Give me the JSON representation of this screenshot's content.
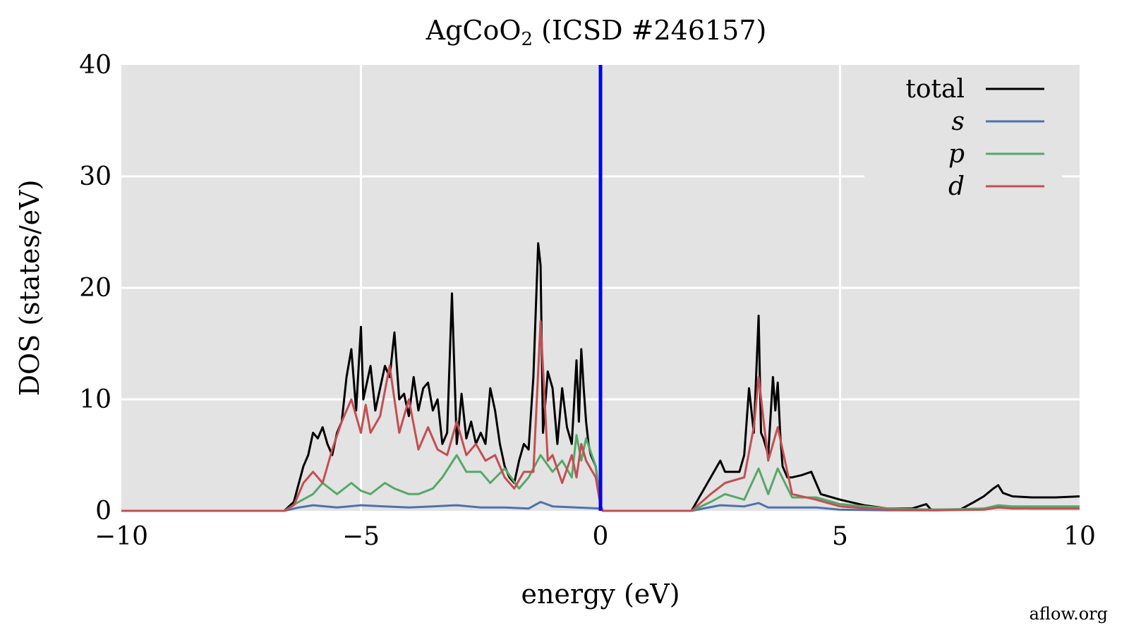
{
  "credit": "aflow.org",
  "chart_data": {
    "type": "line",
    "title_main": "AgCoO",
    "title_sub": "2",
    "title_rest": " (ICSD #246157)",
    "xlabel": "energy (eV)",
    "ylabel": "DOS (states/eV)",
    "xlim": [
      -10,
      10
    ],
    "ylim": [
      0,
      40
    ],
    "xticks": [
      -10,
      -5,
      0,
      5,
      10
    ],
    "xtick_labels": [
      "−10",
      "−5",
      "0",
      "5",
      "10"
    ],
    "yticks": [
      0,
      10,
      20,
      30,
      40
    ],
    "ytick_labels": [
      "0",
      "10",
      "20",
      "30",
      "40"
    ],
    "grid": true,
    "legend_position": "top-right",
    "fermi_level": 0,
    "fermi_color": "#0000ff",
    "background_color": "#e3e3e3",
    "series": [
      {
        "name": "total",
        "color": "#000000",
        "x": [
          -10,
          -6.6,
          -6.4,
          -6.2,
          -6.1,
          -6.0,
          -5.9,
          -5.8,
          -5.7,
          -5.6,
          -5.5,
          -5.4,
          -5.3,
          -5.2,
          -5.1,
          -5.0,
          -4.95,
          -4.9,
          -4.8,
          -4.7,
          -4.6,
          -4.5,
          -4.4,
          -4.3,
          -4.2,
          -4.1,
          -4.0,
          -3.9,
          -3.8,
          -3.7,
          -3.6,
          -3.5,
          -3.4,
          -3.3,
          -3.2,
          -3.1,
          -3.0,
          -2.95,
          -2.9,
          -2.8,
          -2.7,
          -2.6,
          -2.5,
          -2.4,
          -2.3,
          -2.2,
          -2.1,
          -2.0,
          -1.9,
          -1.8,
          -1.7,
          -1.6,
          -1.5,
          -1.4,
          -1.3,
          -1.25,
          -1.2,
          -1.1,
          -1.0,
          -0.9,
          -0.8,
          -0.7,
          -0.6,
          -0.5,
          -0.45,
          -0.4,
          -0.35,
          -0.3,
          -0.25,
          -0.2,
          -0.1,
          0.0,
          0.05,
          1.9,
          2.1,
          2.3,
          2.5,
          2.6,
          2.7,
          2.9,
          3.0,
          3.1,
          3.2,
          3.3,
          3.35,
          3.4,
          3.5,
          3.6,
          3.65,
          3.7,
          3.75,
          3.8,
          3.9,
          4.0,
          4.2,
          4.4,
          4.5,
          4.6,
          5.0,
          5.5,
          6.0,
          6.5,
          6.8,
          6.9,
          7.0,
          7.5,
          7.8,
          8.0,
          8.2,
          8.3,
          8.4,
          8.6,
          9.0,
          9.5,
          10.0
        ],
        "values": [
          0,
          0,
          0.8,
          4,
          5,
          7,
          6.5,
          7.5,
          6,
          5,
          7,
          8,
          12,
          14.5,
          9,
          16.5,
          10,
          11,
          13,
          9,
          11,
          13,
          12,
          16,
          10,
          10.5,
          8.5,
          12,
          9,
          11,
          11.5,
          9,
          10,
          6,
          7,
          19.5,
          6,
          8,
          10.5,
          6.5,
          8,
          6,
          7,
          6,
          11,
          9,
          6,
          4,
          3,
          2.5,
          4.5,
          6,
          5.5,
          12,
          24,
          22,
          7,
          12.5,
          11,
          6,
          11,
          7.5,
          6,
          13.5,
          8,
          14.5,
          11,
          8,
          6,
          5,
          4,
          0.5,
          0,
          0,
          1.5,
          3,
          4.5,
          3.5,
          3.5,
          3.5,
          5,
          11,
          7,
          17.5,
          7,
          6.5,
          5,
          12,
          9,
          11.5,
          7,
          4,
          3,
          3,
          3.2,
          3.5,
          2.5,
          1.5,
          1,
          0.5,
          0.2,
          0.2,
          0.6,
          0.1,
          0.1,
          0.1,
          0.8,
          1.3,
          2.0,
          2.3,
          1.6,
          1.3,
          1.2,
          1.2,
          1.3
        ]
      },
      {
        "name": "s",
        "color": "#4c72b0",
        "x": [
          -10,
          -6.6,
          -6.3,
          -6.0,
          -5.5,
          -5.0,
          -4.5,
          -4.0,
          -3.5,
          -3.0,
          -2.5,
          -2.0,
          -1.5,
          -1.25,
          -1.0,
          -0.5,
          0.0,
          0.05,
          1.9,
          2.5,
          3.0,
          3.3,
          3.5,
          3.7,
          4.0,
          4.5,
          5.0,
          6.0,
          7.0,
          8.0,
          8.3,
          8.6,
          9.0,
          10.0
        ],
        "values": [
          0,
          0,
          0.3,
          0.5,
          0.3,
          0.5,
          0.4,
          0.3,
          0.4,
          0.5,
          0.3,
          0.3,
          0.2,
          0.8,
          0.4,
          0.3,
          0.2,
          0,
          0,
          0.5,
          0.4,
          0.7,
          0.3,
          0.3,
          0.3,
          0.3,
          0.1,
          0.05,
          0.05,
          0.2,
          0.4,
          0.3,
          0.2,
          0.2
        ]
      },
      {
        "name": "p",
        "color": "#55a868",
        "x": [
          -10,
          -6.6,
          -6.3,
          -6.0,
          -5.8,
          -5.5,
          -5.2,
          -5.0,
          -4.8,
          -4.5,
          -4.3,
          -4.0,
          -3.8,
          -3.5,
          -3.3,
          -3.0,
          -2.8,
          -2.5,
          -2.3,
          -2.0,
          -1.7,
          -1.5,
          -1.25,
          -1.0,
          -0.8,
          -0.6,
          -0.5,
          -0.4,
          -0.3,
          -0.1,
          0.0,
          0.05,
          1.9,
          2.3,
          2.6,
          3.0,
          3.3,
          3.5,
          3.7,
          4.0,
          4.5,
          5.0,
          6.0,
          7.0,
          8.0,
          8.3,
          8.6,
          10.0
        ],
        "values": [
          0,
          0,
          0.8,
          1.5,
          2.5,
          1.5,
          2.5,
          1.8,
          1.5,
          2.5,
          2.0,
          1.5,
          1.5,
          2.0,
          3.0,
          5.0,
          3.5,
          3.5,
          2.5,
          3.8,
          2.0,
          3.0,
          5.0,
          3.5,
          4.5,
          3.0,
          6.8,
          4.5,
          6.5,
          4.0,
          0.5,
          0,
          0,
          0.8,
          1.5,
          1.0,
          3.8,
          1.5,
          3.8,
          1.2,
          1.2,
          0.6,
          0.2,
          0.1,
          0.2,
          0.5,
          0.4,
          0.4
        ]
      },
      {
        "name": "d",
        "color": "#c44e52",
        "x": [
          -10,
          -6.6,
          -6.4,
          -6.2,
          -6.0,
          -5.8,
          -5.6,
          -5.4,
          -5.2,
          -5.0,
          -4.9,
          -4.8,
          -4.6,
          -4.4,
          -4.2,
          -4.0,
          -3.8,
          -3.6,
          -3.4,
          -3.2,
          -3.0,
          -2.8,
          -2.6,
          -2.4,
          -2.2,
          -2.0,
          -1.8,
          -1.6,
          -1.4,
          -1.25,
          -1.1,
          -1.0,
          -0.8,
          -0.6,
          -0.5,
          -0.4,
          -0.3,
          -0.1,
          0.0,
          0.05,
          1.9,
          2.3,
          2.6,
          3.0,
          3.2,
          3.3,
          3.5,
          3.7,
          4.0,
          4.5,
          5.0,
          6.0,
          7.0,
          8.0,
          8.3,
          8.6,
          10.0
        ],
        "values": [
          0,
          0,
          0.5,
          2.5,
          3.5,
          2.5,
          5.5,
          8,
          10,
          7,
          9.5,
          7,
          8.5,
          13,
          7,
          10,
          5.5,
          7.5,
          5.5,
          5,
          8,
          5,
          6,
          4.5,
          5,
          3,
          2,
          3.5,
          3.5,
          17,
          4.5,
          5,
          2.5,
          5,
          3,
          6,
          4.5,
          3,
          0.5,
          0,
          0,
          1.5,
          2.5,
          3,
          7.5,
          12,
          4.5,
          7.5,
          1.5,
          1.0,
          0.4,
          0.1,
          0.05,
          0.1,
          0.3,
          0.2,
          0.2
        ]
      }
    ]
  }
}
